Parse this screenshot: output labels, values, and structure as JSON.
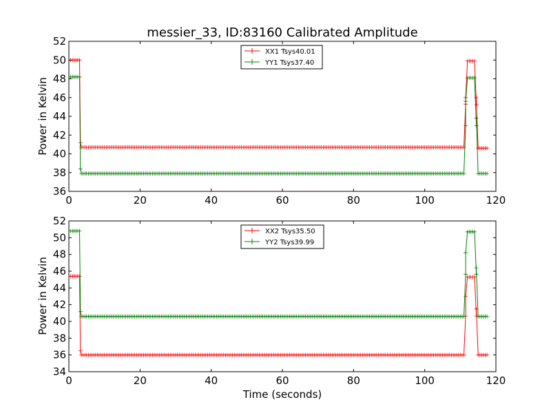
{
  "figure": {
    "title": "messier_33, ID:83160 Calibrated Amplitude"
  },
  "colors": {
    "xx": "#ff0000",
    "yy": "#008000",
    "axis": "#000000",
    "background": "#ffffff"
  },
  "chart_data": [
    {
      "type": "line",
      "title": "messier_33, ID:83160 Calibrated Amplitude",
      "xlabel": "",
      "ylabel": "Power in Kelvin",
      "xlim": [
        0,
        120
      ],
      "ylim": [
        36,
        52
      ],
      "xticks": [
        0,
        20,
        40,
        60,
        80,
        100,
        120
      ],
      "yticks": [
        36,
        38,
        40,
        42,
        44,
        46,
        48,
        50,
        52
      ],
      "grid": false,
      "legend": "top-center",
      "marker": "+",
      "time": {
        "start": 0.5,
        "end": 117.5,
        "step": 0.5
      },
      "series": [
        {
          "name": "XX1 Tsys40.01",
          "color": "#ff0000",
          "segments": [
            {
              "from": 0.5,
              "to": 3.0,
              "value": 50.0
            },
            {
              "from": 3.5,
              "to": 111.0,
              "value": 40.7
            },
            {
              "from": 112.0,
              "to": 114.0,
              "value": 49.9
            },
            {
              "from": 115.0,
              "to": 117.5,
              "value": 40.6
            }
          ],
          "transitions": [
            {
              "t": 3.25,
              "value": 41.2
            },
            {
              "t": 111.5,
              "value": 46.0
            },
            {
              "t": 114.5,
              "value": 46.0
            }
          ]
        },
        {
          "name": "YY1 Tsys37.40",
          "color": "#008000",
          "segments": [
            {
              "from": 0.5,
              "to": 3.0,
              "value": 48.2
            },
            {
              "from": 3.5,
              "to": 111.0,
              "value": 37.9
            },
            {
              "from": 112.0,
              "to": 114.0,
              "value": 48.1
            },
            {
              "from": 115.0,
              "to": 117.5,
              "value": 37.9
            }
          ],
          "transitions": [
            {
              "t": 3.25,
              "value": 38.4
            },
            {
              "t": 111.5,
              "value": 45.6
            },
            {
              "t": 114.5,
              "value": 43.8
            }
          ]
        }
      ]
    },
    {
      "type": "line",
      "title": "",
      "xlabel": "Time (seconds)",
      "ylabel": "Power in Kelvin",
      "xlim": [
        0,
        120
      ],
      "ylim": [
        34,
        52
      ],
      "xticks": [
        0,
        20,
        40,
        60,
        80,
        100,
        120
      ],
      "yticks": [
        34,
        36,
        38,
        40,
        42,
        44,
        46,
        48,
        50,
        52
      ],
      "grid": false,
      "legend": "top-center",
      "marker": "+",
      "time": {
        "start": 0.5,
        "end": 117.5,
        "step": 0.5
      },
      "series": [
        {
          "name": "XX2 Tsys35.50",
          "color": "#ff0000",
          "segments": [
            {
              "from": 0.5,
              "to": 3.0,
              "value": 45.4
            },
            {
              "from": 3.5,
              "to": 111.0,
              "value": 36.0
            },
            {
              "from": 112.0,
              "to": 114.0,
              "value": 45.3
            },
            {
              "from": 115.0,
              "to": 117.5,
              "value": 36.0
            }
          ],
          "transitions": [
            {
              "t": 3.25,
              "value": 36.5
            },
            {
              "t": 111.5,
              "value": 43.0
            },
            {
              "t": 114.5,
              "value": 41.5
            }
          ]
        },
        {
          "name": "YY2 Tsys39.99",
          "color": "#008000",
          "segments": [
            {
              "from": 0.5,
              "to": 3.0,
              "value": 50.8
            },
            {
              "from": 3.5,
              "to": 111.0,
              "value": 40.6
            },
            {
              "from": 112.0,
              "to": 114.0,
              "value": 50.7
            },
            {
              "from": 115.0,
              "to": 117.5,
              "value": 40.6
            }
          ],
          "transitions": [
            {
              "t": 3.25,
              "value": 41.2
            },
            {
              "t": 111.5,
              "value": 48.2
            },
            {
              "t": 114.5,
              "value": 46.4
            }
          ]
        }
      ]
    }
  ]
}
